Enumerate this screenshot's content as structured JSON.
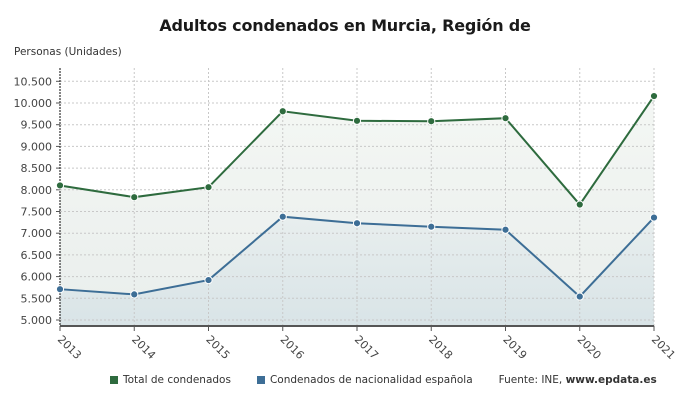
{
  "title": "Adultos condenados en Murcia, Región de",
  "y_axis_label": "Personas (Unidades)",
  "legend": {
    "series_1": "Total de condenados",
    "series_2": "Condenados de nacionalidad española",
    "source_prefix": "Fuente: INE, ",
    "source_site": "www.epdata.es"
  },
  "colors": {
    "total": "#2e6b3e",
    "espanola": "#3d6e96",
    "grid": "#cccccc"
  },
  "chart_data": {
    "type": "line",
    "title": "Adultos condenados en Murcia, Región de",
    "xlabel": "",
    "ylabel": "Personas (Unidades)",
    "categories": [
      "2013",
      "2014",
      "2015",
      "2016",
      "2017",
      "2018",
      "2019",
      "2020",
      "2021"
    ],
    "series": [
      {
        "name": "Total de condenados",
        "color": "#2e6b3e",
        "values": [
          8100,
          7830,
          8060,
          9810,
          9590,
          9580,
          9650,
          7660,
          10160
        ]
      },
      {
        "name": "Condenados de nacionalidad española",
        "color": "#3d6e96",
        "values": [
          5710,
          5590,
          5920,
          7380,
          7230,
          7150,
          7080,
          5540,
          7360
        ]
      }
    ],
    "yticks": [
      "5.000",
      "5.500",
      "6.000",
      "6.500",
      "7.000",
      "7.500",
      "8.000",
      "8.500",
      "9.000",
      "9.500",
      "10.000",
      "10.500"
    ],
    "ylim": [
      4950,
      10800
    ],
    "grid": true,
    "legend_position": "bottom"
  }
}
